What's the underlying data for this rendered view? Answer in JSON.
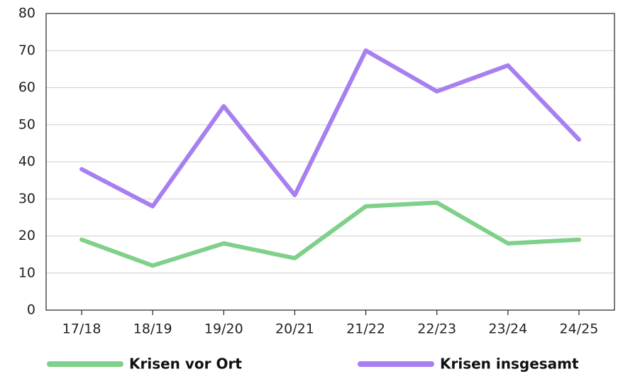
{
  "chart_data": {
    "type": "line",
    "categories": [
      "17/18",
      "18/19",
      "19/20",
      "20/21",
      "21/22",
      "22/23",
      "23/24",
      "24/25"
    ],
    "series": [
      {
        "name": "Krisen vor Ort",
        "color": "#7fd08a",
        "values": [
          19,
          12,
          18,
          14,
          28,
          29,
          18,
          19
        ]
      },
      {
        "name": "Krisen insgesamt",
        "color": "#a87ff0",
        "values": [
          38,
          28,
          55,
          31,
          70,
          59,
          66,
          46
        ]
      }
    ],
    "ylim": [
      0,
      80
    ],
    "yticks": [
      0,
      10,
      20,
      30,
      40,
      50,
      60,
      70,
      80
    ],
    "grid": true,
    "legend": "bottom"
  }
}
